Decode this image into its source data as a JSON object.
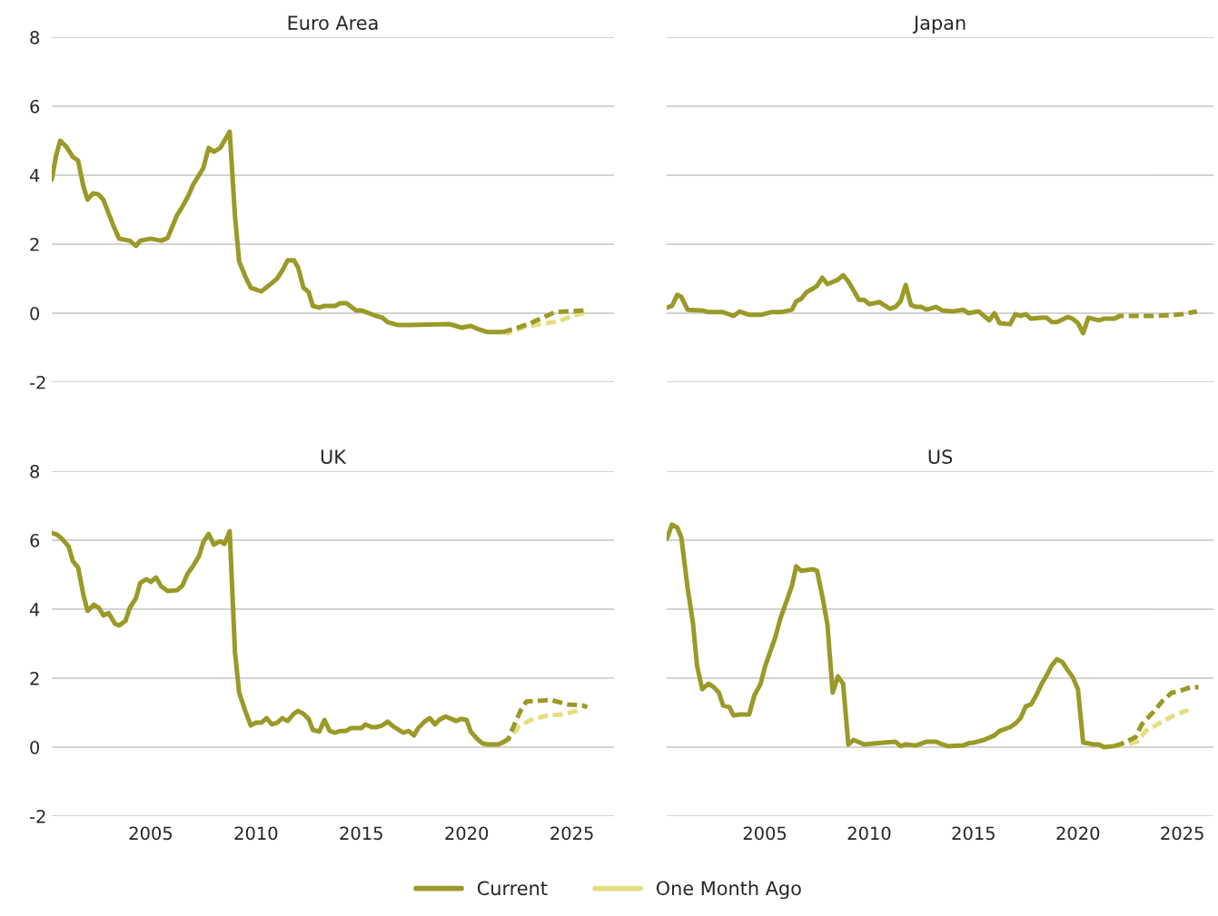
{
  "chart_data": [
    {
      "type": "line",
      "title": "Euro Area",
      "xlim": [
        2000.3,
        2027
      ],
      "xticks": [
        2005,
        2010,
        2015,
        2020,
        2025
      ],
      "ylim": [
        -2,
        8
      ],
      "yticks": [
        -2,
        0,
        2,
        4,
        6,
        8
      ],
      "grid": "y",
      "legend": "bottom",
      "tick_labels": "y",
      "series": [
        {
          "name": "Current",
          "color": "#999a28",
          "line_style": "solid",
          "x": [
            2000.3,
            2000.5,
            2000.7,
            2001.0,
            2001.3,
            2001.55,
            2001.8,
            2002.0,
            2002.25,
            2002.5,
            2002.75,
            2003.0,
            2003.25,
            2003.5,
            2004.0,
            2004.3,
            2004.5,
            2005.0,
            2005.5,
            2005.8,
            2006.25,
            2006.5,
            2006.8,
            2007.0,
            2007.5,
            2007.75,
            2008.0,
            2008.3,
            2008.5,
            2008.75,
            2009.0,
            2009.2,
            2009.5,
            2009.75,
            2010.25,
            2010.75,
            2011.0,
            2011.25,
            2011.5,
            2011.8,
            2012.0,
            2012.25,
            2012.5,
            2012.7,
            2013.0,
            2013.25,
            2013.75,
            2014.0,
            2014.3,
            2014.75,
            2015.0,
            2015.7,
            2016.0,
            2016.25,
            2016.7,
            2017.25,
            2019.2,
            2019.5,
            2019.75,
            2020.2,
            2020.5,
            2021.0,
            2021.7
          ],
          "values": [
            3.87,
            4.55,
            5.0,
            4.82,
            4.53,
            4.42,
            3.68,
            3.29,
            3.47,
            3.45,
            3.29,
            2.89,
            2.5,
            2.16,
            2.1,
            1.95,
            2.1,
            2.16,
            2.1,
            2.18,
            2.84,
            3.08,
            3.42,
            3.71,
            4.21,
            4.79,
            4.68,
            4.79,
            5.0,
            5.26,
            2.82,
            1.5,
            1.05,
            0.74,
            0.63,
            0.87,
            1.0,
            1.24,
            1.53,
            1.53,
            1.32,
            0.74,
            0.61,
            0.21,
            0.16,
            0.21,
            0.21,
            0.29,
            0.29,
            0.08,
            0.08,
            -0.08,
            -0.13,
            -0.26,
            -0.34,
            -0.34,
            -0.32,
            -0.37,
            -0.42,
            -0.37,
            -0.45,
            -0.55,
            -0.55
          ]
        },
        {
          "color": "#e3df80",
          "line_style": "dashed",
          "name": "One Month Ago",
          "x": [
            2021.7,
            2021.95,
            2022.8,
            2023.5,
            2024.3,
            2024.9,
            2025.7
          ],
          "values": [
            -0.55,
            -0.58,
            -0.39,
            -0.32,
            -0.24,
            -0.11,
            0.03
          ]
        },
        {
          "color": "#999a28",
          "line_style": "dashed",
          "x": [
            2021.7,
            2022.3,
            2023.0,
            2023.5,
            2024.2,
            2024.8,
            2025.7
          ],
          "values": [
            -0.55,
            -0.45,
            -0.3,
            -0.16,
            0.03,
            0.05,
            0.08
          ]
        }
      ]
    },
    {
      "type": "line",
      "title": "Japan",
      "xlim": [
        2000.3,
        2026.5
      ],
      "xticks": [
        2005,
        2010,
        2015,
        2020,
        2025
      ],
      "ylim": [
        -2,
        8
      ],
      "yticks": [
        -2,
        0,
        2,
        4,
        6,
        8
      ],
      "grid": "y",
      "tick_labels": false,
      "series": [
        {
          "color": "#999a28",
          "line_style": "solid",
          "x": [
            2000.3,
            2000.55,
            2000.8,
            2001.0,
            2001.3,
            2002.0,
            2002.3,
            2003.0,
            2003.5,
            2003.8,
            2004.25,
            2004.8,
            2005.3,
            2005.8,
            2006.3,
            2006.5,
            2006.75,
            2007.0,
            2007.3,
            2007.5,
            2007.75,
            2008.0,
            2008.5,
            2008.75,
            2009.0,
            2009.3,
            2009.5,
            2009.75,
            2010.0,
            2010.5,
            2010.7,
            2011.0,
            2011.25,
            2011.5,
            2011.75,
            2012.0,
            2012.25,
            2012.5,
            2012.75,
            2013.2,
            2013.5,
            2014.0,
            2014.5,
            2014.75,
            2015.25,
            2015.75,
            2016.0,
            2016.25,
            2016.75,
            2017.0,
            2017.25,
            2017.5,
            2017.75,
            2018.25,
            2018.5,
            2018.75,
            2019.0,
            2019.5,
            2019.75,
            2020.0,
            2020.25,
            2020.5,
            2021.0,
            2021.25,
            2021.75
          ],
          "values": [
            0.16,
            0.21,
            0.53,
            0.47,
            0.1,
            0.08,
            0.03,
            0.03,
            -0.08,
            0.05,
            -0.05,
            -0.05,
            0.03,
            0.03,
            0.1,
            0.34,
            0.42,
            0.61,
            0.71,
            0.79,
            1.03,
            0.84,
            0.97,
            1.1,
            0.92,
            0.61,
            0.39,
            0.39,
            0.26,
            0.32,
            0.24,
            0.13,
            0.18,
            0.34,
            0.82,
            0.24,
            0.18,
            0.18,
            0.1,
            0.18,
            0.08,
            0.05,
            0.1,
            0.0,
            0.05,
            -0.21,
            0.0,
            -0.29,
            -0.32,
            -0.03,
            -0.08,
            -0.03,
            -0.16,
            -0.13,
            -0.13,
            -0.26,
            -0.26,
            -0.11,
            -0.16,
            -0.29,
            -0.58,
            -0.13,
            -0.21,
            -0.16,
            -0.16
          ]
        },
        {
          "color": "#999a28",
          "line_style": "dashed",
          "x": [
            2021.75,
            2022.0,
            2023.5,
            2024.5,
            2025.0,
            2025.7
          ],
          "values": [
            -0.16,
            -0.08,
            -0.08,
            -0.06,
            -0.03,
            0.05
          ]
        }
      ]
    },
    {
      "type": "line",
      "title": "UK",
      "xlim": [
        2000.3,
        2027
      ],
      "xticks": [
        2005,
        2010,
        2015,
        2020,
        2025
      ],
      "ylim": [
        -2,
        8
      ],
      "yticks": [
        -2,
        0,
        2,
        4,
        6,
        8
      ],
      "grid": "y",
      "series": [
        {
          "color": "#999a28",
          "line_style": "solid",
          "x": [
            2000.3,
            2000.55,
            2000.8,
            2001.1,
            2001.3,
            2001.55,
            2001.8,
            2002.0,
            2002.3,
            2002.55,
            2002.75,
            2003.0,
            2003.3,
            2003.5,
            2003.8,
            2004.0,
            2004.3,
            2004.5,
            2004.8,
            2005.0,
            2005.25,
            2005.5,
            2005.8,
            2006.25,
            2006.5,
            2006.75,
            2007.0,
            2007.3,
            2007.5,
            2007.75,
            2008.0,
            2008.3,
            2008.5,
            2008.75,
            2009.0,
            2009.2,
            2009.5,
            2009.75,
            2010.0,
            2010.25,
            2010.5,
            2010.75,
            2011.0,
            2011.25,
            2011.5,
            2011.8,
            2012.0,
            2012.25,
            2012.5,
            2012.7,
            2013.0,
            2013.25,
            2013.5,
            2013.75,
            2014.0,
            2014.25,
            2014.5,
            2015.0,
            2015.2,
            2015.5,
            2015.7,
            2016.0,
            2016.25,
            2016.5,
            2017.0,
            2017.25,
            2017.5,
            2017.7,
            2018.0,
            2018.25,
            2018.5,
            2018.7,
            2019.0,
            2019.2,
            2019.5,
            2019.75,
            2020.0,
            2020.2,
            2020.5,
            2020.75,
            2021.0,
            2021.5,
            2021.7
          ],
          "values": [
            6.21,
            6.16,
            6.03,
            5.82,
            5.39,
            5.21,
            4.42,
            3.95,
            4.13,
            4.03,
            3.82,
            3.89,
            3.58,
            3.53,
            3.66,
            4.03,
            4.32,
            4.76,
            4.87,
            4.79,
            4.92,
            4.66,
            4.53,
            4.55,
            4.68,
            5.03,
            5.24,
            5.55,
            5.95,
            6.18,
            5.87,
            5.97,
            5.89,
            6.26,
            2.76,
            1.58,
            1.03,
            0.63,
            0.71,
            0.71,
            0.84,
            0.66,
            0.71,
            0.84,
            0.76,
            0.97,
            1.05,
            0.97,
            0.82,
            0.5,
            0.45,
            0.79,
            0.47,
            0.42,
            0.47,
            0.47,
            0.55,
            0.55,
            0.66,
            0.58,
            0.58,
            0.63,
            0.74,
            0.61,
            0.42,
            0.47,
            0.34,
            0.55,
            0.74,
            0.84,
            0.66,
            0.79,
            0.89,
            0.84,
            0.76,
            0.82,
            0.79,
            0.45,
            0.24,
            0.11,
            0.08,
            0.08,
            0.13
          ]
        },
        {
          "color": "#e3df80",
          "line_style": "dashed",
          "name": "One Month Ago",
          "x": [
            2021.7,
            2022.0,
            2022.5,
            2023.05,
            2023.85,
            2024.55,
            2025.4
          ],
          "values": [
            0.13,
            0.21,
            0.61,
            0.79,
            0.92,
            0.95,
            1.08
          ]
        },
        {
          "color": "#999a28",
          "line_style": "dashed",
          "x": [
            2021.7,
            2021.98,
            2022.33,
            2022.58,
            2022.84,
            2023.27,
            2024.0,
            2024.8,
            2025.5,
            2025.73
          ],
          "values": [
            0.13,
            0.24,
            0.74,
            1.08,
            1.32,
            1.34,
            1.37,
            1.24,
            1.21,
            1.16
          ]
        }
      ]
    },
    {
      "type": "line",
      "title": "US",
      "xlim": [
        2000.3,
        2026.5
      ],
      "xticks": [
        2005,
        2010,
        2015,
        2020,
        2025
      ],
      "ylim": [
        -2,
        8
      ],
      "yticks": [
        -2,
        0,
        2,
        4,
        6,
        8
      ],
      "grid": "y",
      "tick_labels": "x",
      "series": [
        {
          "color": "#999a28",
          "line_style": "solid",
          "x": [
            2000.3,
            2000.55,
            2000.8,
            2001.0,
            2001.3,
            2001.55,
            2001.75,
            2002.0,
            2002.3,
            2002.55,
            2002.8,
            2003.0,
            2003.3,
            2003.5,
            2003.8,
            2004.25,
            2004.5,
            2004.8,
            2005.0,
            2005.3,
            2005.5,
            2005.75,
            2006.0,
            2006.3,
            2006.5,
            2006.75,
            2007.3,
            2007.5,
            2007.75,
            2008.0,
            2008.25,
            2008.5,
            2008.75,
            2009.0,
            2009.25,
            2009.75,
            2010.7,
            2011.25,
            2011.5,
            2011.75,
            2012.25,
            2012.75,
            2013.2,
            2013.5,
            2013.75,
            2014.5,
            2014.75,
            2015.0,
            2015.5,
            2016.0,
            2016.25,
            2016.75,
            2017.0,
            2017.25,
            2017.5,
            2017.75,
            2018.0,
            2018.25,
            2018.5,
            2018.75,
            2019.0,
            2019.25,
            2019.5,
            2019.75,
            2020.0,
            2020.25,
            2020.5,
            2020.75,
            2021.0,
            2021.25,
            2021.75
          ],
          "values": [
            6.03,
            6.45,
            6.37,
            6.08,
            4.61,
            3.63,
            2.37,
            1.68,
            1.84,
            1.74,
            1.58,
            1.21,
            1.16,
            0.92,
            0.95,
            0.95,
            1.5,
            1.84,
            2.32,
            2.84,
            3.18,
            3.74,
            4.16,
            4.68,
            5.24,
            5.11,
            5.16,
            5.11,
            4.39,
            3.55,
            1.58,
            2.05,
            1.84,
            0.08,
            0.21,
            0.08,
            0.13,
            0.16,
            0.03,
            0.08,
            0.05,
            0.16,
            0.16,
            0.08,
            0.03,
            0.05,
            0.11,
            0.13,
            0.21,
            0.34,
            0.47,
            0.58,
            0.68,
            0.84,
            1.18,
            1.24,
            1.5,
            1.82,
            2.08,
            2.37,
            2.55,
            2.47,
            2.24,
            2.03,
            1.68,
            0.13,
            0.11,
            0.08,
            0.08,
            0.0,
            0.03
          ]
        },
        {
          "color": "#e3df80",
          "line_style": "dashed",
          "name": "One Month Ago",
          "x": [
            2021.75,
            2022.4,
            2022.85,
            2023.25,
            2024.05,
            2024.6,
            2025.3
          ],
          "values": [
            0.03,
            0.08,
            0.16,
            0.47,
            0.74,
            0.92,
            1.08
          ]
        },
        {
          "color": "#999a28",
          "line_style": "dashed",
          "x": [
            2021.75,
            2022.02,
            2022.76,
            2023.06,
            2023.66,
            2024.05,
            2024.5,
            2024.8,
            2025.4,
            2025.78
          ],
          "values": [
            0.03,
            0.08,
            0.29,
            0.66,
            1.05,
            1.34,
            1.58,
            1.61,
            1.74,
            1.74
          ]
        }
      ]
    }
  ]
}
